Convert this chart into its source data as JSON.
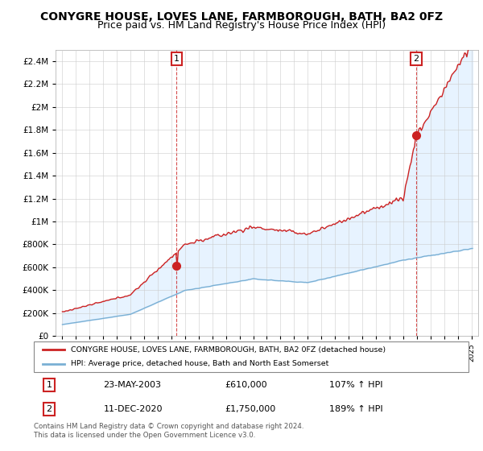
{
  "title": "CONYGRE HOUSE, LOVES LANE, FARMBOROUGH, BATH, BA2 0FZ",
  "subtitle": "Price paid vs. HM Land Registry's House Price Index (HPI)",
  "title_fontsize": 10,
  "subtitle_fontsize": 9,
  "line1_color": "#cc2222",
  "line2_color": "#7ab0d4",
  "fill_color": "#ddeeff",
  "ylim": [
    0,
    2500000
  ],
  "legend_line1": "CONYGRE HOUSE, LOVES LANE, FARMBOROUGH, BATH, BA2 0FZ (detached house)",
  "legend_line2": "HPI: Average price, detached house, Bath and North East Somerset",
  "sale1_year": 2003.38,
  "sale1_price": 610000,
  "sale2_year": 2020.95,
  "sale2_price": 1750000,
  "table_row1_num": "1",
  "table_row1_date": "23-MAY-2003",
  "table_row1_price": "£610,000",
  "table_row1_hpi": "107% ↑ HPI",
  "table_row2_num": "2",
  "table_row2_date": "11-DEC-2020",
  "table_row2_price": "£1,750,000",
  "table_row2_hpi": "189% ↑ HPI",
  "footer": "Contains HM Land Registry data © Crown copyright and database right 2024.\nThis data is licensed under the Open Government Licence v3.0.",
  "grid_color": "#cccccc"
}
